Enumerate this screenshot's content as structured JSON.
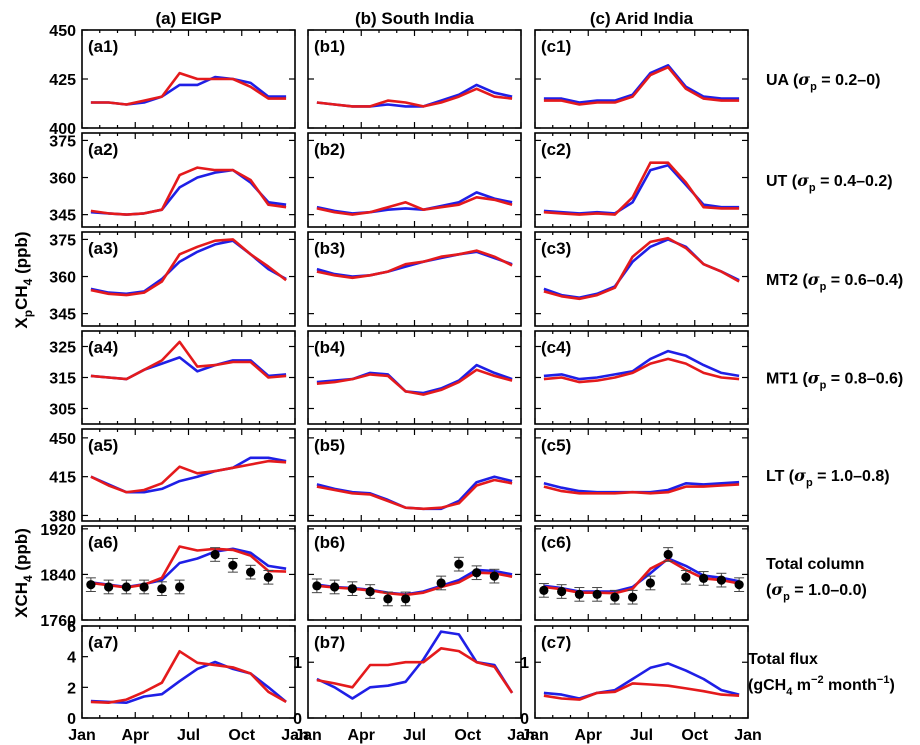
{
  "colors": {
    "blue": "#1f1fe6",
    "red": "#e41a1c",
    "obs": "#000000"
  },
  "columns": [
    {
      "title": "(a) EIGP",
      "key": "a"
    },
    {
      "title": "(b) South India",
      "key": "b"
    },
    {
      "title": "(c) Arid India",
      "key": "c"
    }
  ],
  "months": [
    "Jan",
    "Apr",
    "Jul",
    "Oct",
    "Jan"
  ],
  "ylabels": {
    "xp": [
      "X",
      "p",
      "CH",
      "4",
      " (ppb)"
    ],
    "xch4": [
      "XCH",
      "4",
      " (ppb)"
    ]
  },
  "chart_data": [
    {
      "type": "line",
      "row": "UA",
      "label_parts": [
        "UA (",
        "σ",
        "p",
        " = 0.2–0)"
      ],
      "ylim": [
        400,
        450
      ],
      "yticks": [
        400,
        425,
        450
      ],
      "panels": [
        {
          "id": "(a1)",
          "blue": [
            413,
            413,
            412,
            413,
            416,
            422,
            422,
            426,
            425,
            423,
            416,
            416
          ],
          "red": [
            413,
            413,
            412,
            414,
            416,
            428,
            425,
            425,
            425,
            421,
            415,
            415
          ]
        },
        {
          "id": "(b1)",
          "blue": [
            413,
            412,
            411,
            411,
            412,
            411,
            411,
            414,
            417,
            422,
            418,
            416
          ],
          "red": [
            413,
            412,
            411,
            411,
            414,
            413,
            411,
            413,
            416,
            420,
            416,
            415
          ]
        },
        {
          "id": "(c1)",
          "blue": [
            415,
            415,
            413,
            414,
            414,
            417,
            428,
            432,
            421,
            416,
            415,
            415
          ],
          "red": [
            414,
            414,
            412,
            413,
            413,
            416,
            427,
            431,
            420,
            415,
            414,
            414
          ]
        }
      ]
    },
    {
      "type": "line",
      "row": "UT",
      "label_parts": [
        "UT (",
        "σ",
        "p",
        " = 0.4–0.2)"
      ],
      "ylim": [
        340,
        378
      ],
      "yticks": [
        345,
        360,
        375
      ],
      "panels": [
        {
          "id": "(a2)",
          "blue": [
            346,
            345.5,
            345,
            345.5,
            347,
            356,
            360,
            362,
            363,
            358,
            350,
            349
          ],
          "red": [
            346.5,
            345.5,
            345,
            345.5,
            347,
            361,
            364,
            363,
            363,
            359,
            349,
            348
          ]
        },
        {
          "id": "(b2)",
          "blue": [
            348,
            346.5,
            345.5,
            346,
            347,
            347.5,
            347,
            348.5,
            350,
            354,
            351.5,
            350
          ],
          "red": [
            347.5,
            346,
            345,
            346,
            348,
            350,
            347,
            348,
            349,
            352,
            351,
            349
          ]
        },
        {
          "id": "(c2)",
          "blue": [
            346.5,
            346,
            345.5,
            346,
            345.5,
            350,
            363,
            365,
            357,
            349,
            348,
            348
          ],
          "red": [
            346,
            345.5,
            345,
            345.5,
            345,
            352,
            366,
            366,
            358,
            348,
            347.5,
            347.5
          ]
        }
      ]
    },
    {
      "type": "line",
      "row": "MT2",
      "label_parts": [
        "MT2 (",
        "σ",
        "p",
        " = 0.6–0.4)"
      ],
      "ylim": [
        340,
        378
      ],
      "yticks": [
        345,
        360,
        375
      ],
      "panels": [
        {
          "id": "(a3)",
          "blue": [
            355,
            353.5,
            353,
            354,
            359,
            366,
            370,
            373,
            374.5,
            369,
            363,
            359
          ],
          "red": [
            354.5,
            353,
            352.5,
            353.5,
            358,
            369,
            372,
            374.5,
            375,
            369,
            364,
            358.5
          ]
        },
        {
          "id": "(b3)",
          "blue": [
            363,
            361,
            360,
            360.5,
            362,
            364,
            366,
            367.5,
            369,
            370,
            367.5,
            365
          ],
          "red": [
            362,
            360.5,
            359.5,
            360.5,
            362,
            365,
            366,
            368,
            369,
            370.5,
            368,
            364.5
          ]
        },
        {
          "id": "(c3)",
          "blue": [
            355,
            352.5,
            351.5,
            353,
            356,
            366,
            372,
            375,
            372,
            365,
            362,
            358.5
          ],
          "red": [
            354,
            352,
            351,
            352.5,
            355.5,
            368,
            374,
            375.5,
            371.5,
            365,
            362,
            358
          ]
        }
      ]
    },
    {
      "type": "line",
      "row": "MT1",
      "label_parts": [
        "MT1 (",
        "σ",
        "p",
        " = 0.8–0.6)"
      ],
      "ylim": [
        300,
        330
      ],
      "yticks": [
        305,
        315,
        325
      ],
      "panels": [
        {
          "id": "(a4)",
          "blue": [
            315.5,
            315,
            314.5,
            317.5,
            319.5,
            321.5,
            317,
            319,
            320.5,
            320.5,
            315.5,
            316
          ],
          "red": [
            315.5,
            315,
            314.5,
            317.5,
            320.5,
            326.5,
            318.5,
            319,
            320,
            320,
            315,
            315.5
          ]
        },
        {
          "id": "(b4)",
          "blue": [
            313.5,
            314,
            314.5,
            316.5,
            316,
            310.5,
            310,
            311.5,
            314,
            319,
            316.5,
            314.5
          ],
          "red": [
            313,
            313.5,
            314.5,
            316,
            315.5,
            310.5,
            309.5,
            311,
            313.5,
            317.5,
            315.5,
            314
          ]
        },
        {
          "id": "(c4)",
          "blue": [
            315.5,
            316,
            314.5,
            315,
            316,
            317,
            321,
            323.5,
            322,
            319,
            316.5,
            315.5
          ],
          "red": [
            314.5,
            315,
            313.5,
            314,
            315,
            316.5,
            319.5,
            321,
            319.5,
            316.5,
            315,
            314.5
          ]
        }
      ]
    },
    {
      "type": "line",
      "row": "LT",
      "label_parts": [
        "LT (",
        "σ",
        "p",
        " = 1.0–0.8)"
      ],
      "ylim": [
        375,
        458
      ],
      "yticks": [
        380,
        415,
        450
      ],
      "panels": [
        {
          "id": "(a5)",
          "blue": [
            415,
            408,
            401,
            401,
            404,
            411,
            415,
            420,
            423,
            432,
            432,
            429
          ],
          "red": [
            415,
            407,
            401,
            403,
            409,
            424,
            418,
            420,
            423,
            426,
            429,
            428
          ]
        },
        {
          "id": "(b5)",
          "blue": [
            408,
            404,
            401,
            400,
            394,
            387,
            386,
            386,
            393,
            410,
            415,
            411
          ],
          "red": [
            406,
            403,
            400,
            399,
            393,
            387,
            386,
            387,
            391,
            407,
            412,
            409
          ]
        },
        {
          "id": "(c5)",
          "blue": [
            409,
            405,
            402,
            401,
            401,
            401,
            401,
            403,
            409,
            408,
            409,
            410
          ],
          "red": [
            406,
            402,
            400,
            400,
            400,
            401,
            400,
            401,
            406,
            406,
            407,
            408
          ]
        }
      ]
    },
    {
      "type": "line",
      "row": "Total column",
      "label_parts": [
        "Total column",
        "(",
        "σ",
        "p",
        " = 1.0–0.0)"
      ],
      "ylim": [
        1760,
        1925
      ],
      "yticks": [
        1760,
        1840,
        1920
      ],
      "panels": [
        {
          "id": "(a6)",
          "blue": [
            1826,
            1822,
            1818,
            1823,
            1830,
            1860,
            1868,
            1880,
            1885,
            1878,
            1855,
            1850
          ],
          "red": [
            1825,
            1821,
            1817,
            1822,
            1834,
            1889,
            1882,
            1885,
            1883,
            1873,
            1846,
            1845
          ],
          "obs": [
            1822,
            1818,
            1818,
            1818,
            1815,
            1818,
            null,
            1875,
            1856,
            1844,
            1835,
            null
          ]
        },
        {
          "id": "(b6)",
          "blue": [
            1822,
            1818,
            1816,
            1813,
            1808,
            1805,
            1810,
            1820,
            1830,
            1848,
            1846,
            1840
          ],
          "red": [
            1820,
            1817,
            1815,
            1812,
            1807,
            1804,
            1808,
            1818,
            1826,
            1843,
            1842,
            1836
          ],
          "obs": [
            1820,
            1818,
            1815,
            1810,
            1797,
            1797,
            null,
            1825,
            1858,
            1843,
            1837,
            null
          ]
        },
        {
          "id": "(c6)",
          "blue": [
            1820,
            1816,
            1810,
            1810,
            1810,
            1818,
            1842,
            1868,
            1855,
            1838,
            1834,
            1828
          ],
          "red": [
            1818,
            1814,
            1808,
            1808,
            1807,
            1815,
            1850,
            1866,
            1848,
            1833,
            1830,
            1824
          ],
          "obs": [
            1812,
            1810,
            1805,
            1805,
            1800,
            1800,
            1825,
            1875,
            1835,
            1833,
            1830,
            1822
          ]
        }
      ]
    },
    {
      "type": "line",
      "row": "Total flux",
      "label_parts": [
        "Total flux",
        "(gCH",
        "4",
        " m",
        "−2",
        " month",
        "−1",
        ")"
      ],
      "ylim": [
        0,
        6
      ],
      "yticks": [
        0,
        2,
        4,
        6
      ],
      "panels": [
        {
          "id": "(a7)",
          "blue": [
            1.1,
            1.05,
            1.0,
            1.4,
            1.55,
            2.4,
            3.2,
            3.65,
            3.2,
            2.9,
            2.0,
            1.05
          ],
          "red": [
            1.05,
            1.0,
            1.2,
            1.7,
            2.3,
            4.35,
            3.6,
            3.45,
            3.3,
            2.9,
            1.7,
            1.05
          ]
        },
        {
          "id": "(b7)",
          "blue": [
            0.7,
            0.55,
            0.35,
            0.55,
            0.58,
            0.65,
            1.05,
            1.55,
            1.5,
            1.0,
            0.95,
            0.45
          ],
          "red": [
            0.68,
            0.62,
            0.55,
            0.95,
            0.95,
            1.0,
            1.0,
            1.25,
            1.2,
            1.0,
            0.92,
            0.45
          ],
          "ylim": [
            0,
            1.65
          ],
          "yticks": [
            0,
            1
          ]
        },
        {
          "id": "(c7)",
          "blue": [
            0.45,
            0.42,
            0.35,
            0.45,
            0.5,
            0.7,
            0.9,
            0.98,
            0.85,
            0.7,
            0.5,
            0.42
          ],
          "red": [
            0.4,
            0.35,
            0.33,
            0.45,
            0.47,
            0.62,
            0.6,
            0.58,
            0.53,
            0.48,
            0.42,
            0.4
          ],
          "ylim": [
            0,
            1.65
          ],
          "yticks": [
            0,
            1
          ]
        }
      ]
    }
  ]
}
